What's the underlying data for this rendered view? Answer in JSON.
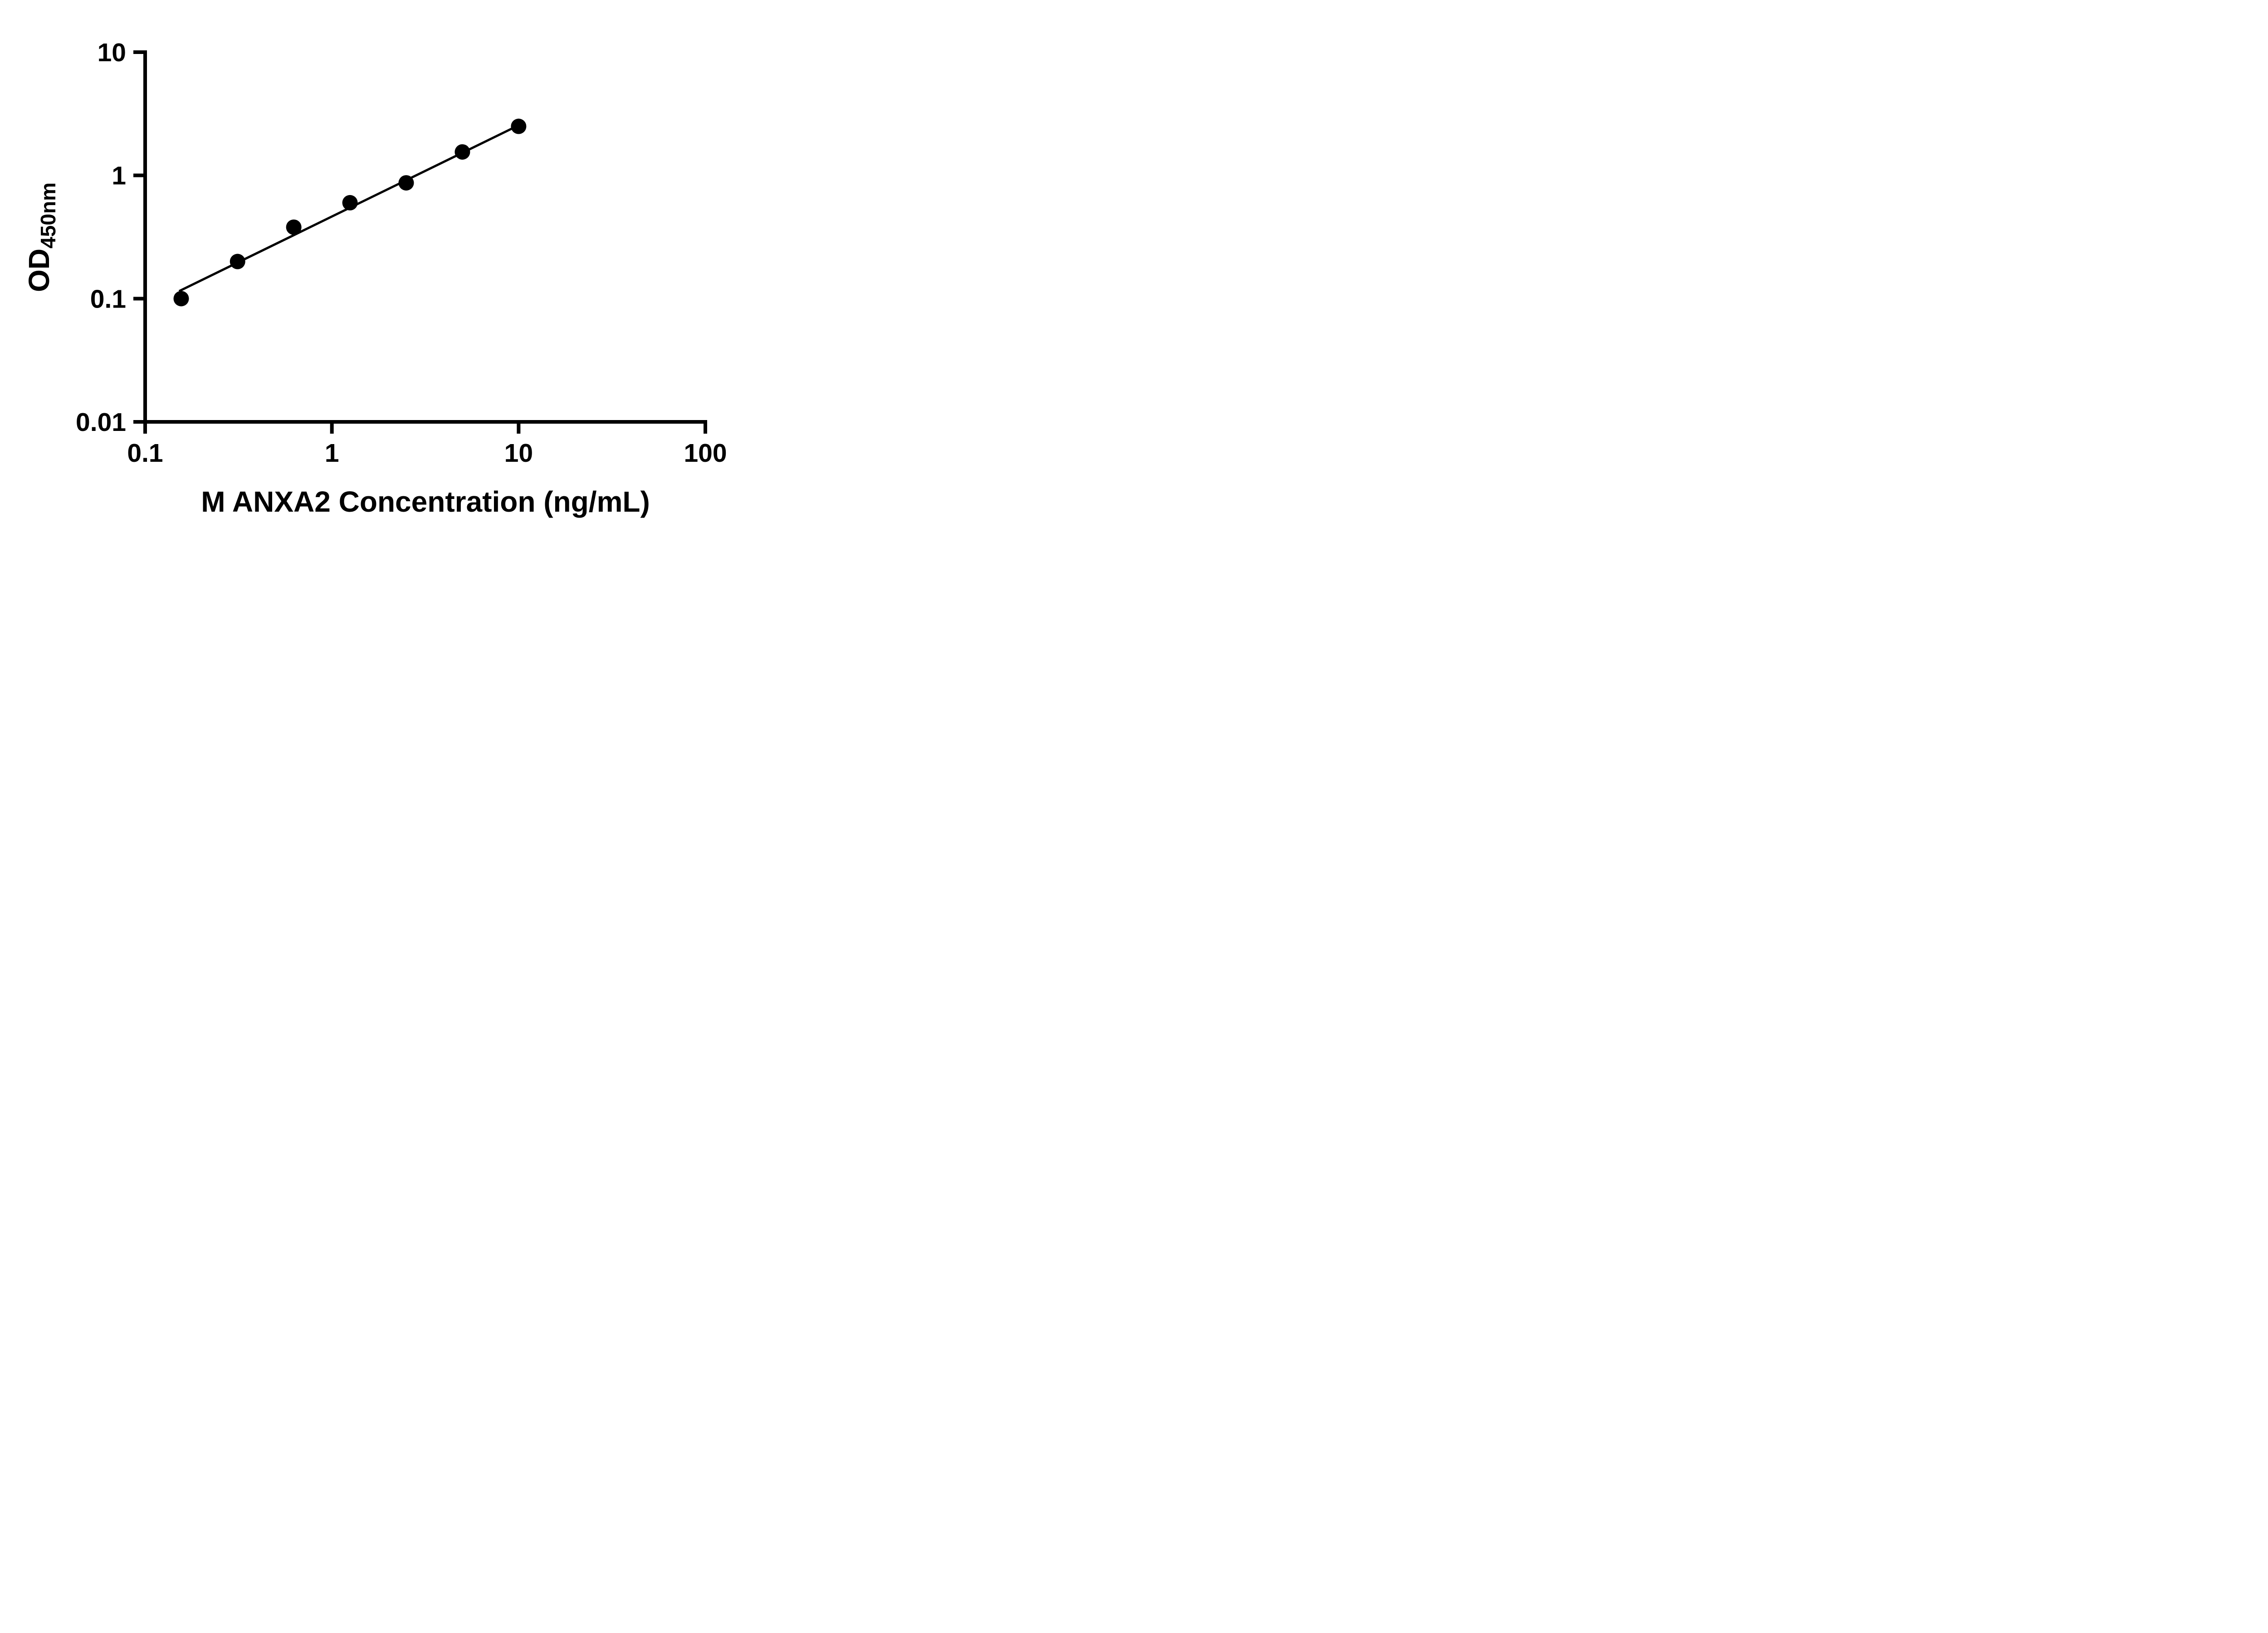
{
  "page": {
    "background": "#ffffff"
  },
  "chart_data": {
    "type": "scatter",
    "title": "",
    "xlabel": "M ANXA2 Concentration (ng/mL)",
    "ylabel_main": "OD",
    "ylabel_sub": "450nm",
    "x_scale": "log",
    "y_scale": "log",
    "xlim": [
      0.1,
      100
    ],
    "ylim": [
      0.01,
      10
    ],
    "grid": false,
    "legend": false,
    "x_ticks": [
      {
        "value": 0.1,
        "label": "0.1"
      },
      {
        "value": 1,
        "label": "1"
      },
      {
        "value": 10,
        "label": "10"
      },
      {
        "value": 100,
        "label": "100"
      }
    ],
    "y_ticks": [
      {
        "value": 0.01,
        "label": "0.01"
      },
      {
        "value": 0.1,
        "label": "0.1"
      },
      {
        "value": 1,
        "label": "1"
      },
      {
        "value": 10,
        "label": "10"
      }
    ],
    "points": [
      {
        "x": 0.156,
        "y": 0.1
      },
      {
        "x": 0.3125,
        "y": 0.2
      },
      {
        "x": 0.625,
        "y": 0.38
      },
      {
        "x": 1.25,
        "y": 0.6
      },
      {
        "x": 2.5,
        "y": 0.87
      },
      {
        "x": 5,
        "y": 1.55
      },
      {
        "x": 10,
        "y": 2.5
      }
    ],
    "trendline": {
      "x1": 0.152,
      "y1": 0.115,
      "x2": 10.0,
      "y2": 2.55
    },
    "colors": {
      "marker": "#000000",
      "line": "#000000",
      "axis": "#000000",
      "text": "#000000"
    }
  }
}
